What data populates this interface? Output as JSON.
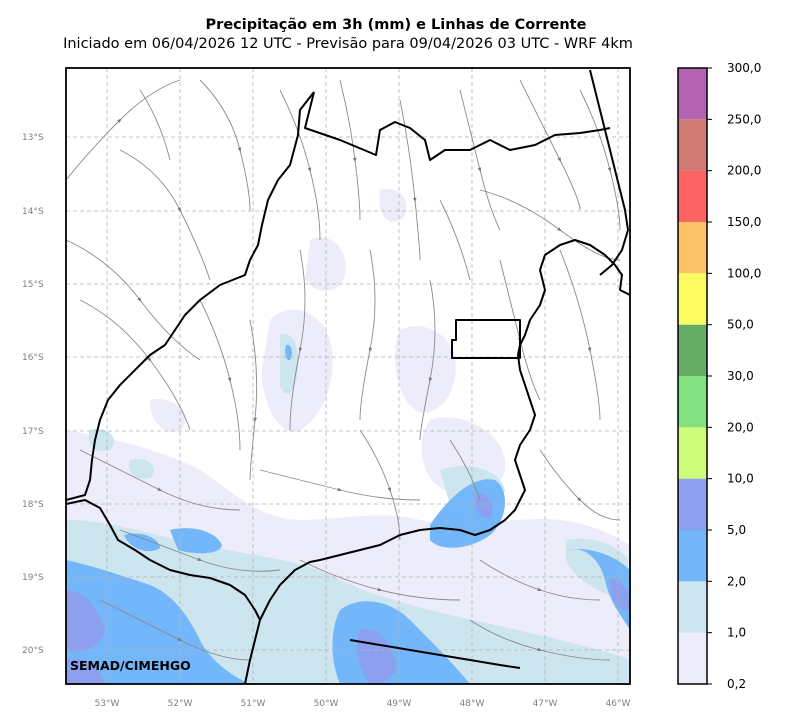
{
  "title": "Precipitação em 3h (mm) e Linhas de Corrente",
  "subtitle": "Iniciado em 06/04/2026 12 UTC - Previsão para 09/04/2026 03 UTC - WRF 4km",
  "credit": "SEMAD/CIMEHGO",
  "lat_labels": [
    "13°S",
    "14°S",
    "15°S",
    "16°S",
    "17°S",
    "18°S",
    "19°S",
    "20°S"
  ],
  "lon_labels": [
    "53°W",
    "52°W",
    "51°W",
    "50°W",
    "49°W",
    "48°W",
    "47°W",
    "46°W"
  ],
  "colorbar": {
    "ticks": [
      "0,2",
      "1,0",
      "2,0",
      "5,0",
      "10,0",
      "20,0",
      "30,0",
      "50,0",
      "100,0",
      "150,0",
      "200,0",
      "250,0",
      "300,0"
    ],
    "colors": [
      "#ececfa",
      "#cde5ee",
      "#74b6fa",
      "#8ca0ef",
      "#ccfc78",
      "#82e282",
      "#66ac66",
      "#fcfc62",
      "#fcc466",
      "#fc6464",
      "#d07a76",
      "#b264b2"
    ]
  },
  "colors": {
    "border": "#000000",
    "streamline": "#8a8a8a",
    "grid": "#b4b4b4"
  }
}
